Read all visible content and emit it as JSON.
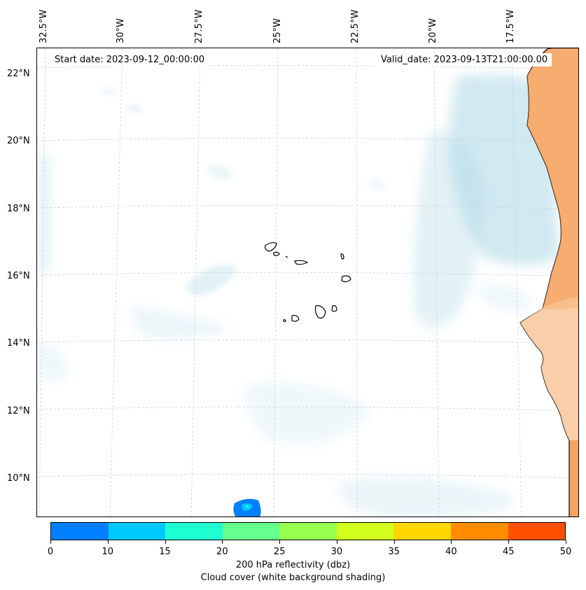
{
  "map": {
    "start_date": "Start date: 2023-09-12_00:00:00",
    "valid_date": "Valid_date: 2023-09-13T21:00:00.00",
    "lon_labels": [
      "32.5°W",
      "30°W",
      "27.5°W",
      "25°W",
      "22.5°W",
      "20°W",
      "17.5°W"
    ],
    "lat_labels": [
      "22°N",
      "20°N",
      "18°N",
      "16°N",
      "14°N",
      "12°N",
      "10°N"
    ],
    "features": [
      "Cape Verde islands",
      "West African coastline",
      "cloud cover shading",
      "reflectivity echo"
    ]
  },
  "colorbar": {
    "ticks": [
      "0",
      "10",
      "15",
      "20",
      "25",
      "30",
      "35",
      "40",
      "45",
      "50"
    ],
    "colors": [
      "#0080ff",
      "#00c8ff",
      "#1effd2",
      "#64ff8c",
      "#96ff50",
      "#d2ff1e",
      "#ffd700",
      "#ff8c00",
      "#ff5000"
    ],
    "label": "200 hPa reflectivity (dbz)",
    "sublabel": "Cloud cover (white background shading)"
  },
  "colors": {
    "land": "#f4a460",
    "cloud": "#add8e6",
    "coastline": "#000000"
  }
}
